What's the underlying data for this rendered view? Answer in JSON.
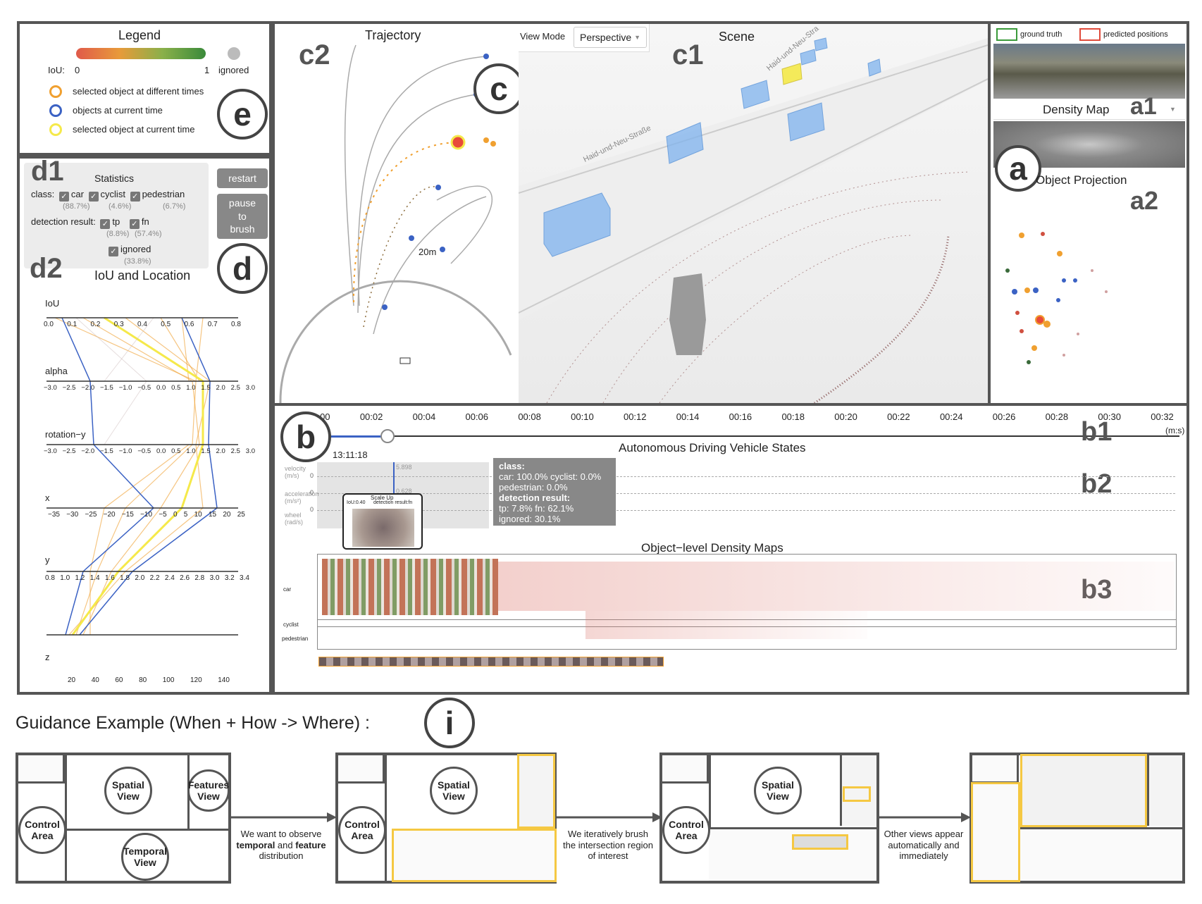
{
  "legend": {
    "title": "Legend",
    "iou_label": "IoU:",
    "iou_min": "0",
    "iou_max": "1",
    "ignored": "ignored",
    "items": [
      {
        "label": "selected object at different times",
        "color": "#f0a030"
      },
      {
        "label": "objects at current time",
        "color": "#3b62c4"
      },
      {
        "label": "selected object at current time",
        "color": "#f5e94a"
      }
    ],
    "marker": "e"
  },
  "statistics": {
    "marker": "d1",
    "title": "Statistics",
    "class_label": "class:",
    "classes": [
      {
        "name": "car",
        "pct": "(88.7%)"
      },
      {
        "name": "cyclist",
        "pct": "(4.6%)"
      },
      {
        "name": "pedestrian",
        "pct": "(6.7%)"
      }
    ],
    "detection_label": "detection result:",
    "results": [
      {
        "name": "tp",
        "pct": "(8.8%)"
      },
      {
        "name": "fn",
        "pct": "(57.4%)"
      },
      {
        "name": "ignored",
        "pct": "(33.8%)"
      }
    ],
    "restart": "restart",
    "pause_line1": "pause",
    "pause_line2": "to",
    "pause_line3": "brush",
    "section_marker": "d"
  },
  "iou_location": {
    "marker": "d2",
    "title": "IoU and Location",
    "axes": [
      {
        "name": "IoU",
        "ticks": [
          "0.0",
          "0.1",
          "0.2",
          "0.3",
          "0.4",
          "0.5",
          "0.6",
          "0.7",
          "0.8"
        ]
      },
      {
        "name": "alpha",
        "ticks": [
          "−3.0",
          "−2.5",
          "−2.0",
          "−1.5",
          "−1.0",
          "−0.5",
          "0.0",
          "0.5",
          "1.0",
          "1.5",
          "2.0",
          "2.5",
          "3.0"
        ]
      },
      {
        "name": "rotation−y",
        "ticks": [
          "−3.0",
          "−2.5",
          "−2.0",
          "−1.5",
          "−1.0",
          "−0.5",
          "0.0",
          "0.5",
          "1.0",
          "1.5",
          "2.0",
          "2.5",
          "3.0"
        ]
      },
      {
        "name": "x",
        "ticks": [
          "−35",
          "−30",
          "−25",
          "−20",
          "−15",
          "−10",
          "−5",
          "0",
          "5",
          "10",
          "15",
          "20",
          "25"
        ]
      },
      {
        "name": "y",
        "ticks": [
          "0.8",
          "1.0",
          "1.2",
          "1.4",
          "1.6",
          "1.8",
          "2.0",
          "2.2",
          "2.4",
          "2.6",
          "2.8",
          "3.0",
          "3.2",
          "3.4"
        ]
      },
      {
        "name": "z",
        "ticks": [
          "20",
          "40",
          "60",
          "80",
          "100",
          "120",
          "140"
        ]
      }
    ]
  },
  "trajectory": {
    "marker": "c2",
    "title": "Trajectory",
    "range_label": "20m",
    "section_marker": "c"
  },
  "scene": {
    "marker": "c1",
    "view_mode_label": "View Mode",
    "view_mode_value": "Perspective",
    "title": "Scene",
    "street_label": "Haid-und-Neu-Straße",
    "street_label_2": "Haid-und-Neu-Stra"
  },
  "right_panel": {
    "ground_truth": "ground truth",
    "predicted": "predicted positions",
    "density_map_label": "Density Map",
    "marker_a1": "a1",
    "marker_a": "a",
    "object_projection": "Object Projection",
    "marker_a2": "a2"
  },
  "timeline": {
    "ticks": [
      "00:00",
      "00:02",
      "00:04",
      "00:06",
      "00:08",
      "00:10",
      "00:12",
      "00:14",
      "00:16",
      "00:18",
      "00:20",
      "00:22",
      "00:24",
      "00:26",
      "00:28",
      "00:30",
      "00:32"
    ],
    "unit": "(m:s)",
    "marker_b": "b",
    "marker_b1": "b1",
    "current_time": "13:11:18",
    "states_title": "Autonomous Driving Vehicle States",
    "marker_b2": "b2",
    "velocity_label": "velocity",
    "velocity_unit": "(m/s)",
    "acceleration_label": "acceleration",
    "acceleration_unit": "(m/s²)",
    "wheel_label": "wheel",
    "wheel_unit": "(rad/s)",
    "zero": "0",
    "v_value": "5.898",
    "a_value": "0.628",
    "tooltip": {
      "class_label": "class:",
      "class_line1": "car: 100.0% cyclist: 0.0%",
      "class_line2": "pedestrian: 0.0%",
      "result_label": "detection result:",
      "result_line1": "tp: 7.8% fn: 62.1%",
      "result_line2": "ignored: 30.1%"
    },
    "scale_up": {
      "title": "Scale Up",
      "iou": "IoU:0.40",
      "result": "detection result:fn"
    },
    "density_title": "Object−level Density Maps",
    "marker_b3": "b3",
    "rows": [
      "car",
      "cyclist",
      "pedestrian"
    ]
  },
  "guidance": {
    "title": "Guidance Example (When + How -> Where) :",
    "marker": "i",
    "panel1": {
      "spatial": [
        "Spatial",
        "View"
      ],
      "features": [
        "Features",
        "View"
      ],
      "control": [
        "Control",
        "Area"
      ],
      "temporal": [
        "Temporal",
        "View"
      ]
    },
    "step1": [
      "We want to observe",
      "temporal",
      " and ",
      "feature",
      "distribution"
    ],
    "panel2": {
      "control": [
        "Control",
        "Area"
      ],
      "spatial": [
        "Spatial",
        "View"
      ]
    },
    "step2": [
      "We iteratively brush",
      "the intersection region",
      "of interest"
    ],
    "panel3": {
      "control": [
        "Control",
        "Area"
      ],
      "spatial": [
        "Spatial",
        "View"
      ]
    },
    "step3": [
      "Other views appear",
      "automatically and",
      "immediately"
    ]
  },
  "colors": {
    "border": "#555555",
    "orange": "#f0a030",
    "blue": "#3b62c4",
    "yellow": "#f5e94a",
    "box_blue": "#7fb3ee",
    "highlight": "#f5c842"
  }
}
